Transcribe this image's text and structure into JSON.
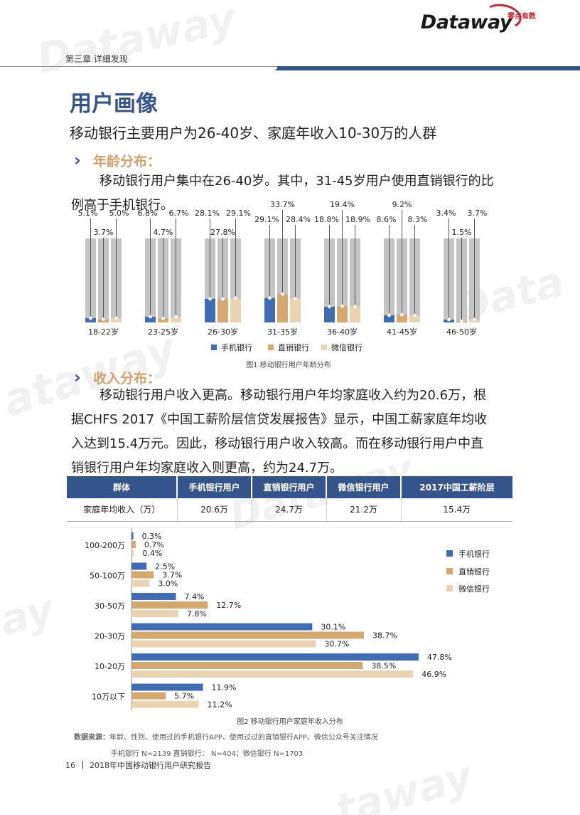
{
  "header": {
    "logo_text": "Dataway",
    "logo_sub": "零点有数",
    "chapter": "第三章  详细发现"
  },
  "title": "用户画像",
  "subtitle": "移动银行主要用户为26-40岁、家庭年收入10-30万的人群",
  "section_age": {
    "arrow": "›",
    "heading": "年龄分布：",
    "paragraph_lines": [
      "移动银行用户集中在26-40岁。其中，31-45岁用户使用直销银行的比",
      "例高于手机银行。"
    ]
  },
  "section_income": {
    "arrow": "›",
    "heading": "收入分布：",
    "paragraph_lines": [
      "移动银行用户收入更高。移动银行用户年均家庭收入约为20.6万，根",
      "据CHFS 2017《中国工薪阶层信贷发展报告》显示，中国工薪家庭年均收",
      "入达到15.4万元。因此，移动银行用户收入较高。而在移动银行用户中直",
      "销银行用户年均家庭收入则更高，约为24.7万。"
    ]
  },
  "colors": {
    "mobile": "#3f6cb5",
    "direct": "#d4a86f",
    "wechat": "#e9d3b3",
    "track": "#c4c4c4",
    "brand": "#34558b"
  },
  "chart_data": [
    {
      "type": "bar",
      "title": "图1  移动银行用户年龄分布",
      "categories": [
        "18-22岁",
        "23-25岁",
        "26-30岁",
        "31-35岁",
        "36-40岁",
        "41-45岁",
        "46-50岁"
      ],
      "series": [
        {
          "name": "手机银行",
          "values": [
            5.1,
            6.8,
            28.1,
            29.1,
            18.8,
            8.6,
            3.4
          ],
          "labels": [
            "5.1%",
            "6.8%",
            "28.1%",
            "29.1%",
            "18.8%",
            "8.6%",
            "3.4%"
          ]
        },
        {
          "name": "直销银行",
          "values": [
            3.7,
            4.7,
            27.8,
            33.7,
            19.4,
            9.2,
            1.5
          ],
          "labels": [
            "3.7%",
            "4.7%",
            "27.8%",
            "33.7%",
            "19.4%",
            "9.2%",
            "1.5%"
          ]
        },
        {
          "name": "微信银行",
          "values": [
            5.0,
            6.7,
            29.1,
            28.4,
            18.9,
            8.3,
            3.7
          ],
          "labels": [
            "5.0%",
            "6.7%",
            "29.1%",
            "28.4%",
            "18.9%",
            "8.3%",
            "3.7%"
          ]
        }
      ],
      "ylim": [
        0,
        100
      ],
      "legend": "bottom"
    },
    {
      "type": "bar",
      "orientation": "horizontal",
      "title": "图2 移动银行用户家庭年收入分布",
      "categories": [
        "100-200万",
        "50-100万",
        "30-50万",
        "20-30万",
        "10-20万",
        "10万以下"
      ],
      "series": [
        {
          "name": "手机银行",
          "values": [
            0.3,
            2.5,
            7.4,
            30.1,
            47.8,
            11.9
          ],
          "labels": [
            "0.3%",
            "2.5%",
            "7.4%",
            "30.1%",
            "47.8%",
            "11.9%"
          ]
        },
        {
          "name": "直销银行",
          "values": [
            0.7,
            3.7,
            12.7,
            38.7,
            38.5,
            5.7
          ],
          "labels": [
            "0.7%",
            "3.7%",
            "12.7%",
            "38.7%",
            "38.5%",
            "5.7%"
          ]
        },
        {
          "name": "微信银行",
          "values": [
            0.4,
            3.0,
            7.8,
            30.7,
            46.9,
            11.2
          ],
          "labels": [
            "0.4%",
            "3.0%",
            "7.8%",
            "30.7%",
            "46.9%",
            "11.2%"
          ]
        }
      ],
      "xlim": [
        0,
        50
      ],
      "legend": "right"
    }
  ],
  "income_table": {
    "headers": [
      "群体",
      "手机银行用户",
      "直销银行用户",
      "微信银行用户",
      "2017中国工薪阶层"
    ],
    "row": [
      "家庭年均收入（万）",
      "20.6万",
      "24.7万",
      "21.2万",
      "15.4万"
    ]
  },
  "source": {
    "label": "数据来源：",
    "text": "年龄、性别、使用过的手机银行APP、使用过过的直销银行APP、微信公众号关注情况",
    "sample": "手机银行 N=2139  直销银行： N=404；微信银行 N=1703"
  },
  "footer": {
    "page": "16",
    "report": "2018年中国移动银行用户研究报告"
  }
}
